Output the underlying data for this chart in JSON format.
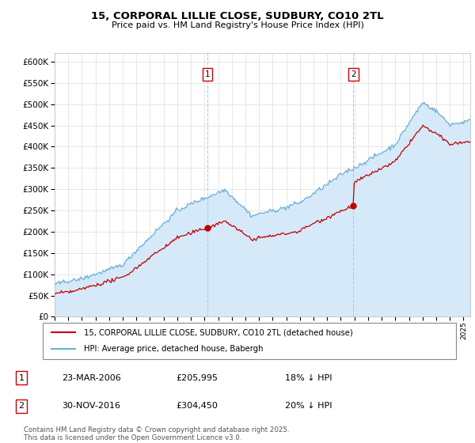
{
  "title": "15, CORPORAL LILLIE CLOSE, SUDBURY, CO10 2TL",
  "subtitle": "Price paid vs. HM Land Registry's House Price Index (HPI)",
  "ylim": [
    0,
    620000
  ],
  "ytick_vals": [
    0,
    50000,
    100000,
    150000,
    200000,
    250000,
    300000,
    350000,
    400000,
    450000,
    500000,
    550000,
    600000
  ],
  "hpi_color": "#6baed6",
  "hpi_fill_color": "#d6e9f8",
  "price_color": "#c00000",
  "vline_color": "#aaccee",
  "marker1_date": "23-MAR-2006",
  "marker1_price": 205995,
  "marker1_pct": "18% ↓ HPI",
  "marker2_date": "30-NOV-2016",
  "marker2_price": 304450,
  "marker2_pct": "20% ↓ HPI",
  "legend_line1": "15, CORPORAL LILLIE CLOSE, SUDBURY, CO10 2TL (detached house)",
  "legend_line2": "HPI: Average price, detached house, Babergh",
  "footer": "Contains HM Land Registry data © Crown copyright and database right 2025.\nThis data is licensed under the Open Government Licence v3.0.",
  "vline1_x": 2006.22,
  "vline2_x": 2016.92,
  "xmin": 1995,
  "xmax": 2025.5
}
